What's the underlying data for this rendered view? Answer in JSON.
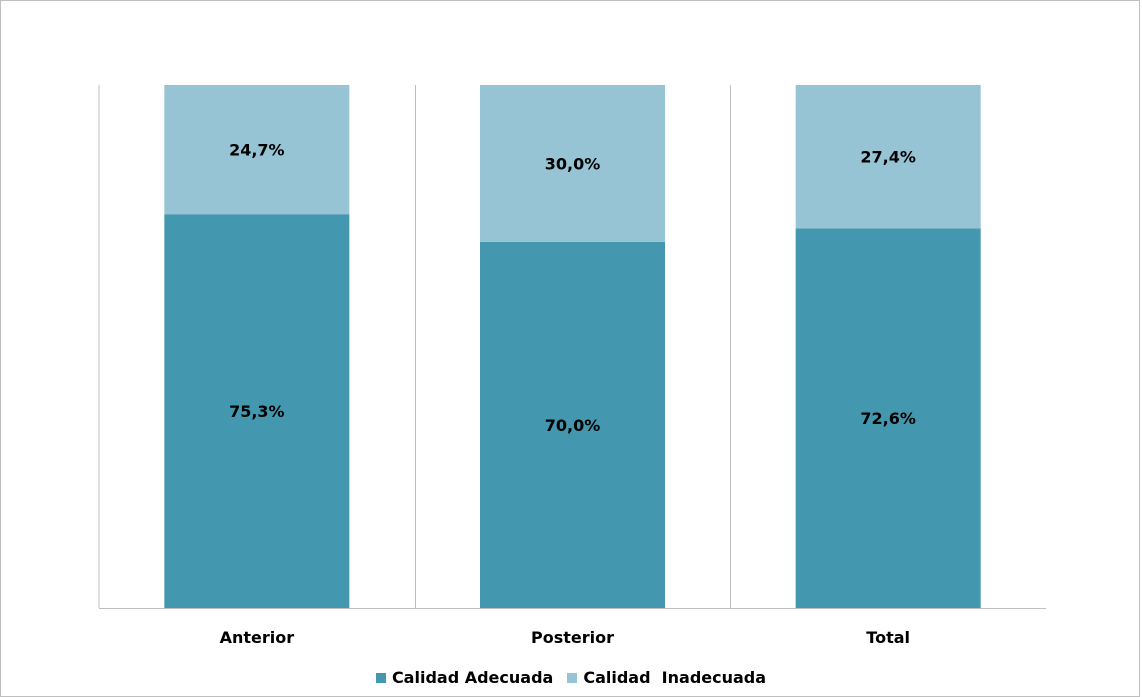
{
  "chart_data": {
    "type": "bar",
    "stacked": true,
    "orientation": "vertical",
    "categories": [
      "Anterior",
      "Posterior",
      "Total"
    ],
    "series": [
      {
        "name": "Calidad Adecuada",
        "values": [
          75.3,
          70.0,
          72.6
        ],
        "labels": [
          "75,3%",
          "70,0%",
          "72,6%"
        ],
        "color": "#4397ae"
      },
      {
        "name": "Calidad  Inadecuada",
        "values": [
          24.7,
          30.0,
          27.4
        ],
        "labels": [
          "24,7%",
          "30,0%",
          "27,4%"
        ],
        "color": "#96c4d4"
      }
    ],
    "ylim": [
      0,
      100
    ],
    "grid": false,
    "legend": "bottom",
    "title": "",
    "xlabel": "",
    "ylabel": ""
  }
}
